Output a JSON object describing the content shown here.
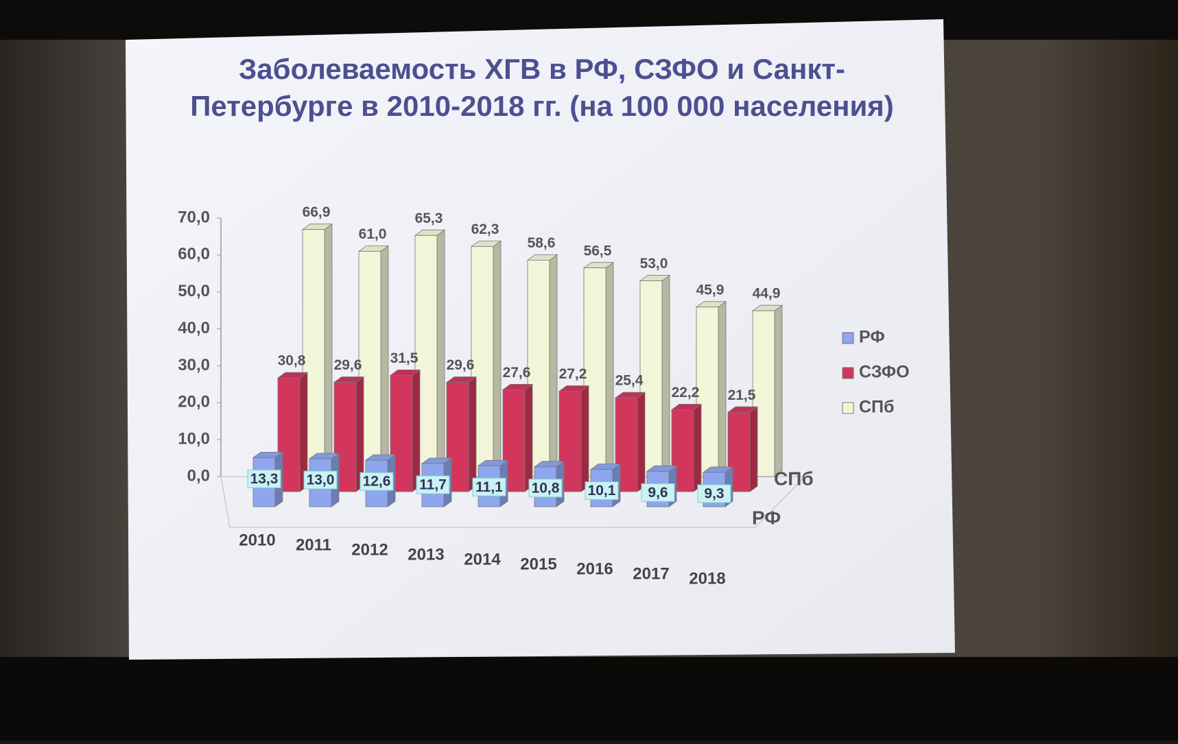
{
  "chart_data": {
    "type": "bar3d",
    "title": [
      "Заболеваемость ХГВ в РФ, СЗФО и Санкт-",
      "Петербурге в 2010-2018 гг. (на 100 000 населения)"
    ],
    "categories": [
      "2010",
      "2011",
      "2012",
      "2013",
      "2014",
      "2015",
      "2016",
      "2017",
      "2018"
    ],
    "series": [
      {
        "name": "РФ",
        "color": "#8ea6ee",
        "values": [
          13.3,
          13.0,
          12.6,
          11.7,
          11.1,
          10.8,
          10.1,
          9.6,
          9.3
        ],
        "value_labels": [
          "13,3",
          "13,0",
          "12,6",
          "11,7",
          "11,1",
          "10,8",
          "10,1",
          "9,6",
          "9,3"
        ]
      },
      {
        "name": "СЗФО",
        "color": "#d2365c",
        "values": [
          30.8,
          29.6,
          31.5,
          29.6,
          27.6,
          27.2,
          25.4,
          22.2,
          21.5
        ],
        "value_labels": [
          "30,8",
          "29,6",
          "31,5",
          "29,6",
          "27,6",
          "27,2",
          "25,4",
          "22,2",
          "21,5"
        ]
      },
      {
        "name": "СПб",
        "color": "#f3f5d8",
        "values": [
          66.9,
          61.0,
          65.3,
          62.3,
          58.6,
          56.5,
          53.0,
          45.9,
          44.9
        ],
        "value_labels": [
          "66,9",
          "61,0",
          "65,3",
          "62,3",
          "58,6",
          "56,5",
          "53,0",
          "45,9",
          "44,9"
        ]
      }
    ],
    "ylim": [
      0,
      70
    ],
    "yticks": [
      {
        "value": 0,
        "label": "0,0"
      },
      {
        "value": 10,
        "label": "10,0"
      },
      {
        "value": 20,
        "label": "20,0"
      },
      {
        "value": 30,
        "label": "30,0"
      },
      {
        "value": 40,
        "label": "40,0"
      },
      {
        "value": 50,
        "label": "50,0"
      },
      {
        "value": 60,
        "label": "60,0"
      },
      {
        "value": 70,
        "label": "70,0"
      }
    ],
    "legend": "right"
  }
}
